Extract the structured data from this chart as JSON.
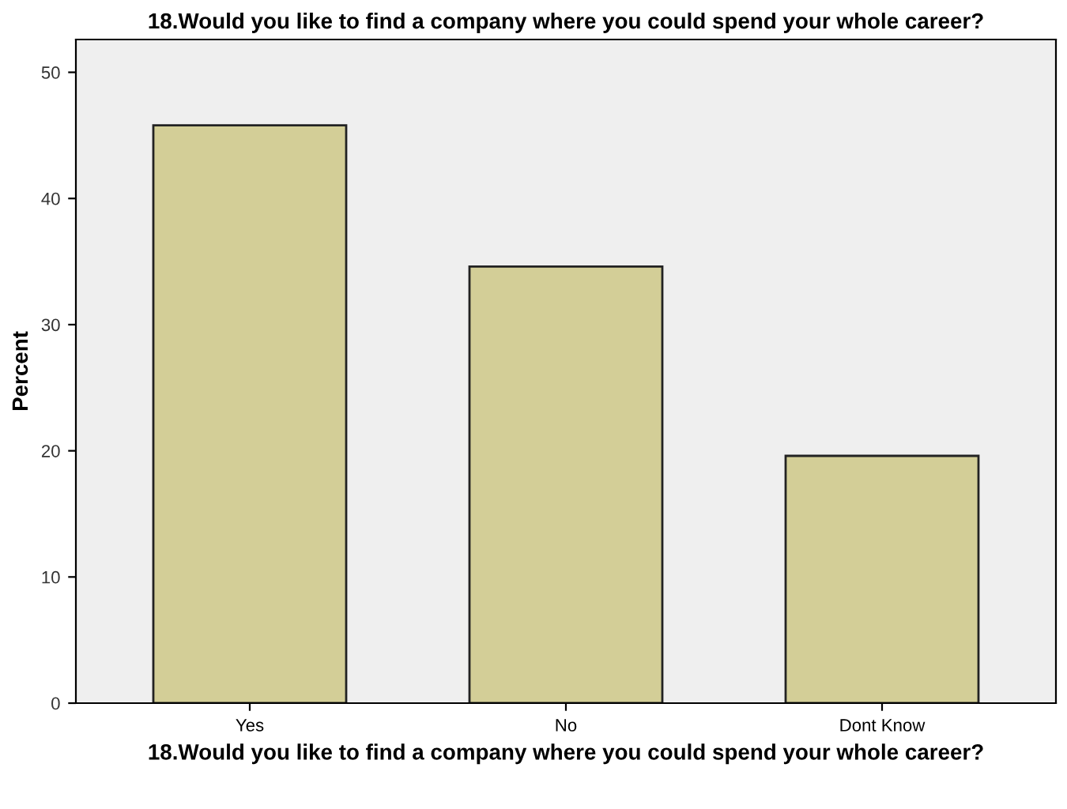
{
  "chart_data": {
    "type": "bar",
    "title": "18.Would you like to find a company where you could spend your whole career?",
    "xlabel": "18.Would you like to find a company where you could spend your whole career?",
    "ylabel": "Percent",
    "categories": [
      "Yes",
      "No",
      "Dont Know"
    ],
    "series": [
      {
        "color": "#d3ce97",
        "values": [
          45.8,
          34.6,
          19.6
        ]
      }
    ],
    "ylim": [
      0,
      52.6
    ],
    "yticks": [
      0,
      10,
      20,
      30,
      40,
      50
    ],
    "grid": false,
    "legend": false
  }
}
